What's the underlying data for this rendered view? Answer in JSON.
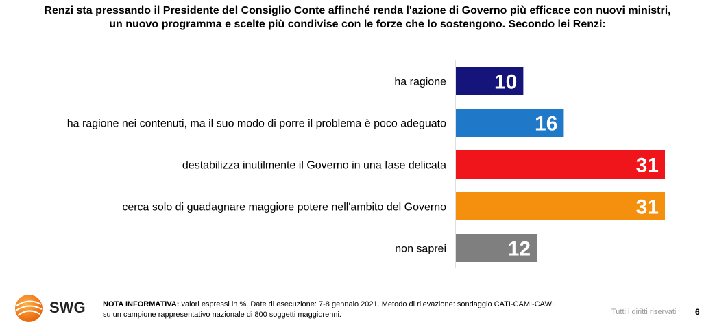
{
  "question": {
    "line1": "Renzi sta pressando il Presidente del Consiglio Conte affinché renda l'azione di Governo più efficace con nuovi ministri,",
    "line2": "un nuovo programma e scelte più condivise con le forze che lo sostengono. Secondo lei Renzi:"
  },
  "chart_data": {
    "type": "bar",
    "orientation": "horizontal",
    "unit": "%",
    "categories": [
      "ha ragione",
      "ha ragione nei contenuti, ma il suo modo di porre il problema è poco adeguato",
      "destabilizza inutilmente il Governo in una fase delicata",
      "cerca solo di guadagnare maggiore potere nell'ambito del Governo",
      "non saprei"
    ],
    "values": [
      10,
      16,
      31,
      31,
      12
    ],
    "colors": [
      "#15147a",
      "#1f78c8",
      "#f0151a",
      "#f5900f",
      "#7f7f7f"
    ],
    "xlim": [
      0,
      31
    ],
    "grid": false,
    "legend": "none"
  },
  "footer": {
    "brand": "SWG",
    "note_label": "NOTA INFORMATIVA:",
    "note_line1": "valori espressi in %. Date di esecuzione: 7-8 gennaio 2021. Metodo di rilevazione: sondaggio CATI-CAMI-CAWI",
    "note_line2": "su un campione rappresentativo nazionale di 800 soggetti maggiorenni.",
    "rights": "Tutti i diritti riservati",
    "page_number": "6"
  }
}
